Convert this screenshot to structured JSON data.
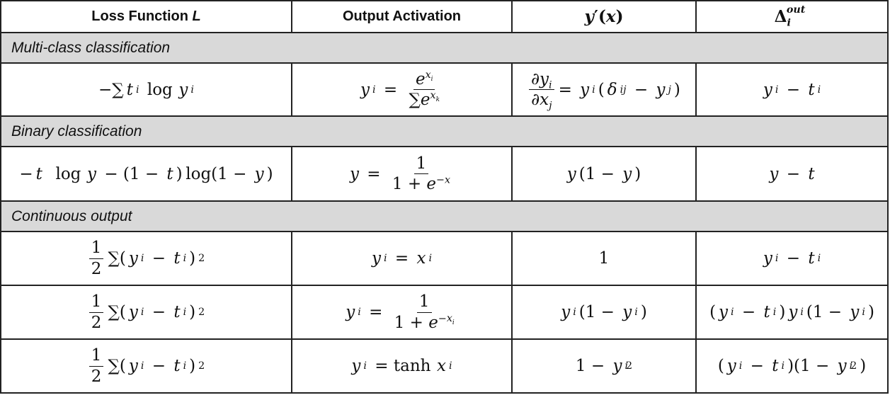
{
  "headers": {
    "loss": "Loss Function L",
    "activation": "Output Activation",
    "derivative": "y′(x)",
    "delta": "Δ_i^out"
  },
  "sections": {
    "multiclass": "Multi-class classification",
    "binary": "Binary classification",
    "continuous": "Continuous output"
  },
  "rows": [
    {
      "section": "multiclass",
      "loss": "−∑t_i log y_i",
      "activation": "y_i = e^{x_i} / ∑e^{x_k}",
      "derivative": "∂y_i/∂x_j = y_i(δ_ij − y_j)",
      "delta": "y_i − t_i"
    },
    {
      "section": "binary",
      "loss": "−t log y − (1 − t) log(1 − y)",
      "activation": "y = 1 / (1 + e^{−x})",
      "derivative": "y(1 − y)",
      "delta": "y − t"
    },
    {
      "section": "continuous",
      "loss": "1/2 ∑(y_i − t_i)^2",
      "activation": "y_i = x_i",
      "derivative": "1",
      "delta": "y_i − t_i"
    },
    {
      "section": "continuous",
      "loss": "1/2 ∑(y_i − t_i)^2",
      "activation": "y_i = 1 / (1 + e^{−x_i})",
      "derivative": "y_i(1 − y_i)",
      "delta": "(y_i − t_i)y_i(1 − y_i)"
    },
    {
      "section": "continuous",
      "loss": "1/2 ∑(y_i − t_i)^2",
      "activation": "y_i = tanh x_i",
      "derivative": "1 − y_i^2",
      "delta": "(y_i − t_i)(1 − y_i^2)"
    }
  ]
}
